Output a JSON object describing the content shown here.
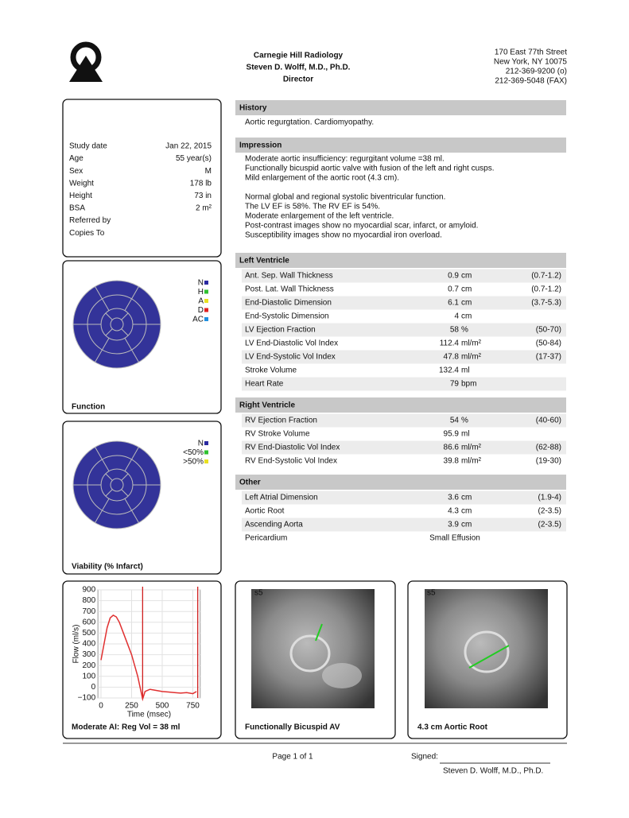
{
  "header": {
    "practice": "Carnegie Hill Radiology",
    "physician": "Steven D. Wolff, M.D., Ph.D.",
    "role": "Director",
    "address": [
      "170 East 77th Street",
      "New York, NY 10075",
      "212-369-9200 (o)",
      "212-369-5048 (FAX)"
    ]
  },
  "patient": [
    {
      "label": "Study date",
      "value": "Jan 22, 2015"
    },
    {
      "label": "Age",
      "value": "55 year(s)"
    },
    {
      "label": "Sex",
      "value": "M"
    },
    {
      "label": "Weight",
      "value": "178 lb"
    },
    {
      "label": "Height",
      "value": "73 in"
    },
    {
      "label": "BSA",
      "value": "2 m²"
    },
    {
      "label": "Referred by"
    },
    {
      "label": "Copies To"
    }
  ],
  "history": {
    "title": "History",
    "text": "Aortic regurgtation. Cardiomyopathy."
  },
  "impression": {
    "title": "Impression",
    "paragraphs": [
      [
        "Moderate aortic insufficiency: regurgitant volume =38 ml.",
        "Functionally bicuspid aortic valve with fusion of the left and right cusps.",
        "Mild enlargement of the aortic root (4.3 cm)."
      ],
      [
        "Normal global and regional systolic biventricular function.",
        "The LV EF is 58%. The RV EF is 54%.",
        "Moderate enlargement of the left ventricle.",
        "Post-contrast images show no myocardial scar, infarct, or amyloid.",
        "Susceptibility images show no myocardial iron overload."
      ]
    ]
  },
  "tables": [
    {
      "title": "Left Ventricle",
      "rows": [
        {
          "name": "Ant. Sep. Wall Thickness",
          "value": "0.9",
          "unit": "cm",
          "range": "(0.7-1.2)"
        },
        {
          "name": "Post. Lat. Wall Thickness",
          "value": "0.7",
          "unit": "cm",
          "range": "(0.7-1.2)"
        },
        {
          "name": "End-Diastolic Dimension",
          "value": "6.1",
          "unit": "cm",
          "range": "(3.7-5.3)",
          "color": "#d42020"
        },
        {
          "name": "End-Systolic Dimension",
          "value": "4",
          "unit": "cm"
        },
        {
          "name": "LV Ejection Fraction",
          "value": "58",
          "unit": "%",
          "range": "(50-70)"
        },
        {
          "name": "LV End-Diastolic Vol Index",
          "value": "112.4",
          "unit": "ml/m²",
          "range": "(50-84)",
          "color": "#d42020"
        },
        {
          "name": "LV End-Systolic Vol Index",
          "value": "47.8",
          "unit": "ml/m²",
          "range": "(17-37)",
          "color": "#d42020"
        },
        {
          "name": "Stroke Volume",
          "value": "132.4",
          "unit": "ml"
        },
        {
          "name": "Heart Rate",
          "value": "79",
          "unit": "bpm"
        }
      ]
    },
    {
      "title": "Right Ventricle",
      "rows": [
        {
          "name": "RV Ejection Fraction",
          "value": "54",
          "unit": "%",
          "range": "(40-60)"
        },
        {
          "name": "RV Stroke Volume",
          "value": "95.9",
          "unit": "ml"
        },
        {
          "name": "RV End-Diastolic Vol Index",
          "value": "86.6",
          "unit": "ml/m²",
          "range": "(62-88)"
        },
        {
          "name": "RV End-Systolic Vol Index",
          "value": "39.8",
          "unit": "ml/m²",
          "range": "(19-30)",
          "color": "#d42020"
        }
      ]
    },
    {
      "title": "Other",
      "rows": [
        {
          "name": "Left Atrial Dimension",
          "value": "3.6",
          "unit": "cm",
          "range": "(1.9-4)"
        },
        {
          "name": "Aortic Root",
          "value": "4.3",
          "unit": "cm",
          "range": "(2-3.5)",
          "color": "#d42020"
        },
        {
          "name": "Ascending Aorta",
          "value": "3.9",
          "unit": "cm",
          "range": "(2-3.5)",
          "color": "#d42020"
        },
        {
          "name": "Pericardium",
          "value": "Small Effusion"
        }
      ]
    }
  ],
  "bullseyes": [
    {
      "caption": "Function",
      "legend": [
        {
          "label": "N",
          "color": "#2a2aa0"
        },
        {
          "label": "H",
          "color": "#30c030"
        },
        {
          "label": "A",
          "color": "#e8e020"
        },
        {
          "label": "D",
          "color": "#e02020"
        },
        {
          "label": "AC",
          "color": "#2090e0"
        }
      ]
    },
    {
      "caption": "Viability (% Infarct)",
      "legend": [
        {
          "label": "N",
          "color": "#2a2aa0"
        },
        {
          "label": "<50%",
          "color": "#30c030"
        },
        {
          "label": ">50%",
          "color": "#e8e020"
        }
      ]
    }
  ],
  "chart_data": {
    "type": "line",
    "caption": "Moderate AI: Reg Vol = 38 ml",
    "x_label": "Time (msec)",
    "y_label": "Flow (ml/s)",
    "xlim": [
      -25,
      810
    ],
    "ylim": [
      -100,
      900
    ],
    "xticks": [
      0,
      250,
      500,
      750
    ],
    "yticks": [
      {
        "value": -100,
        "label": "−100"
      },
      0,
      100,
      200,
      300,
      400,
      500,
      600,
      700,
      800,
      900
    ],
    "grid": true,
    "x": [
      0,
      25,
      50,
      75,
      100,
      125,
      150,
      200,
      250,
      300,
      340,
      360,
      400,
      450,
      500,
      550,
      600,
      650,
      700,
      750,
      780
    ],
    "series": [
      {
        "color": "#e03030",
        "values": [
          250,
          400,
          550,
          640,
          665,
          650,
          600,
          450,
          300,
          100,
          -110,
          -40,
          -20,
          -30,
          -40,
          -45,
          -50,
          -55,
          -50,
          -60,
          -40
        ]
      }
    ],
    "markers": {
      "color": "#d02020",
      "x": [
        340,
        790
      ]
    }
  },
  "images": [
    {
      "caption": "Functionally Bicuspid AV",
      "label": "s5"
    },
    {
      "caption": "4.3 cm Aortic Root",
      "label": "s5"
    }
  ],
  "footer": {
    "page": "Page 1 of 1",
    "signed": "Signed:",
    "signer": "Steven D. Wolff, M.D., Ph.D."
  }
}
